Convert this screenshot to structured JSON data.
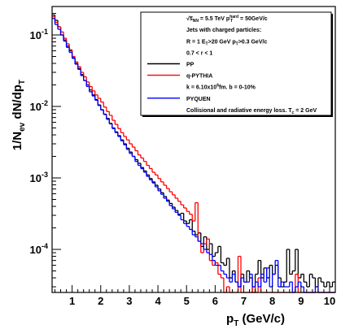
{
  "chart_data": {
    "type": "line",
    "style": "step-histogram",
    "xlabel": {
      "main": "p",
      "sub": "T",
      "tail": " (GeV/c)"
    },
    "ylabel": {
      "pre": "1/N",
      "sub1": "ev",
      "mid": " dN/dp",
      "sub2": "T"
    },
    "xlim": [
      0.3,
      10.2
    ],
    "ylim": [
      2.5e-05,
      0.25
    ],
    "yscale": "log",
    "grid": false,
    "legend_position": "top-right",
    "x_ticks": [
      "1",
      "2",
      "3",
      "4",
      "5",
      "6",
      "7",
      "8",
      "9",
      "10"
    ],
    "y_ticks": [
      {
        "value": 0.1,
        "base": "10",
        "exp": "-1"
      },
      {
        "value": 0.01,
        "base": "10",
        "exp": "-2"
      },
      {
        "value": 0.001,
        "base": "10",
        "exp": "-3"
      },
      {
        "value": 0.0001,
        "base": "10",
        "exp": "-4"
      }
    ],
    "legend": {
      "header": [
        {
          "pre": "√s",
          "sub": "NN",
          "post": " = 5.5 TeV p",
          "sup": "hard",
          "sub2": "T",
          "tail": " = 50GeV/c"
        },
        {
          "pre": "Jets with charged particles:"
        },
        {
          "pre": "R = 1 E",
          "sub": "T",
          "post": ">20 GeV p",
          "sub2": "T",
          "tail": ">0.3 GeV/c"
        },
        {
          "pre": "0.7 < r < 1"
        }
      ],
      "entries": [
        {
          "series": 0,
          "label": "PP"
        },
        {
          "series": 1,
          "label": "q-PYTHIA"
        },
        {
          "series": 1,
          "label": "k = 6.10x10",
          "sup": "6",
          "tail": "fm. b = 0-10%",
          "no_line": true
        },
        {
          "series": 2,
          "label": "PYQUEN"
        },
        {
          "series": 2,
          "label": "Collisional and radiative energy loss. T",
          "sub": "c",
          "tail": " = 2 GeV",
          "no_line": true
        }
      ]
    },
    "bin_width": 0.1,
    "x_start": 0.3,
    "series": [
      {
        "name": "PP",
        "color": "#000000",
        "values": [
          0.19,
          0.16,
          0.13,
          0.1,
          0.085,
          0.07,
          0.06,
          0.048,
          0.04,
          0.034,
          0.028,
          0.023,
          0.02,
          0.017,
          0.0145,
          0.0125,
          0.0105,
          0.009,
          0.0078,
          0.0068,
          0.0058,
          0.005,
          0.0044,
          0.0039,
          0.0034,
          0.003,
          0.0026,
          0.0023,
          0.002,
          0.0018,
          0.0016,
          0.0014,
          0.00125,
          0.0011,
          0.00098,
          0.00088,
          0.00079,
          0.0007,
          0.00062,
          0.00055,
          0.00049,
          0.00044,
          0.00039,
          0.00035,
          0.00031,
          0.00032,
          0.00025,
          0.00023,
          0.00026,
          0.00018,
          0.00016,
          0.00017,
          0.00011,
          0.00015,
          0.0001,
          0.00012,
          8e-05,
          9e-05,
          0.00011,
          6.5e-05,
          6e-05,
          7.5e-05,
          4e-05,
          5e-05,
          3.5e-05,
          3e-05,
          4.5e-05,
          3.5e-05,
          5e-05,
          4e-05,
          2.5e-05,
          4.5e-05,
          7e-05,
          4e-05,
          5.5e-05,
          4e-05,
          6e-05,
          4.5e-05,
          6e-05,
          4e-05,
          3e-05,
          3.5e-05,
          0.0001,
          4.5e-05,
          5e-05,
          0.0001,
          4e-05,
          4.5e-05,
          3.5e-05,
          3e-05,
          4.5e-05,
          4e-05,
          3e-05,
          4e-05,
          3.5e-05,
          3e-05,
          3.5e-05,
          3e-05,
          3.5e-05
        ]
      },
      {
        "name": "q-PYTHIA",
        "color": "#ff0000",
        "values": [
          0.18,
          0.15,
          0.13,
          0.11,
          0.09,
          0.075,
          0.062,
          0.05,
          0.042,
          0.036,
          0.03,
          0.026,
          0.022,
          0.019,
          0.0165,
          0.0145,
          0.013,
          0.0115,
          0.0098,
          0.0085,
          0.0075,
          0.0064,
          0.0056,
          0.0049,
          0.0043,
          0.0038,
          0.0034,
          0.003,
          0.0027,
          0.0024,
          0.0021,
          0.0019,
          0.0017,
          0.0015,
          0.00135,
          0.0012,
          0.0011,
          0.00098,
          0.00088,
          0.00079,
          0.00071,
          0.00064,
          0.00058,
          0.00052,
          0.00047,
          0.00042,
          0.00038,
          0.00034,
          0.00031,
          0.00025,
          0.00045,
          0.00013,
          9e-05,
          0.00012,
          0.00014,
          7e-05,
          6e-05,
          6.5e-05,
          4.5e-05,
          4e-05,
          2.5e-05,
          3e-05,
          2.5e-05,
          2.5e-05,
          2.5e-05,
          8e-05,
          2.5e-05,
          2.5e-05,
          2.5e-05,
          2.5e-05,
          3e-05,
          2.5e-05,
          4e-05,
          2.5e-05,
          2.5e-05,
          2.5e-05,
          2.5e-05,
          2.5e-05,
          2.5e-05,
          2.5e-05,
          2.5e-05,
          2.5e-05,
          2.5e-05,
          2.5e-05,
          2.5e-05,
          4.5e-05,
          2.5e-05,
          2.5e-05,
          2.5e-05,
          2.5e-05,
          2.5e-05,
          2.5e-05,
          2.5e-05,
          2.5e-05,
          2.5e-05,
          2.5e-05,
          2.5e-05,
          2.5e-05,
          2.5e-05
        ]
      },
      {
        "name": "PYQUEN",
        "color": "#0000ff",
        "values": [
          0.17,
          0.14,
          0.12,
          0.1,
          0.082,
          0.067,
          0.057,
          0.047,
          0.039,
          0.033,
          0.027,
          0.023,
          0.019,
          0.016,
          0.014,
          0.0122,
          0.0103,
          0.0089,
          0.0077,
          0.0066,
          0.0057,
          0.0049,
          0.0043,
          0.0038,
          0.0033,
          0.0029,
          0.0025,
          0.0022,
          0.002,
          0.0017,
          0.0015,
          0.00135,
          0.0012,
          0.00105,
          0.00094,
          0.00085,
          0.00075,
          0.00066,
          0.00059,
          0.00052,
          0.00047,
          0.00041,
          0.00037,
          0.00033,
          0.0003,
          0.00026,
          0.00023,
          0.00021,
          0.00019,
          0.00016,
          0.00015,
          0.00013,
          0.00012,
          0.0001,
          9e-05,
          8.5e-05,
          7e-05,
          6e-05,
          6e-05,
          5e-05,
          4.5e-05,
          4e-05,
          3.5e-05,
          4.5e-05,
          3.5e-05,
          3e-05,
          4e-05,
          3.5e-05,
          3.5e-05,
          4.5e-05,
          3e-05,
          3.5e-05,
          3e-05,
          4.5e-05,
          3.5e-05,
          5.5e-05,
          3e-05,
          4.5e-05,
          7e-05,
          3e-05,
          3.5e-05,
          3e-05,
          3e-05,
          3.5e-05,
          2.5e-05,
          3e-05,
          3.5e-05,
          3e-05,
          2.5e-05,
          2.5e-05,
          2.5e-05,
          2.5e-05,
          3e-05,
          2.5e-05,
          2.5e-05,
          2.5e-05,
          2.5e-05,
          2.5e-05,
          2.5e-05
        ]
      }
    ]
  }
}
